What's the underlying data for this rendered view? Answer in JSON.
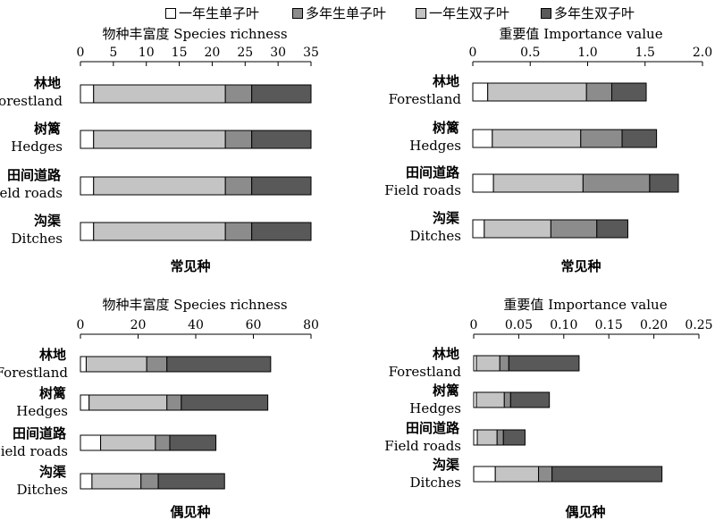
{
  "legend": [
    {
      "label": "一年生单子叶",
      "color": "#ffffff"
    },
    {
      "label": "多年生单子叶",
      "color": "#8c8c8c"
    },
    {
      "label": "一年生双子叶",
      "color": "#c4c4c4"
    },
    {
      "label": "多年生双子叶",
      "color": "#595959"
    }
  ],
  "chart_data": [
    {
      "type": "bar",
      "orientation": "horizontal-stacked",
      "title": "物种丰富度 Species richness",
      "caption": "常见种",
      "xlim": [
        0,
        35
      ],
      "ticks": [
        0,
        5,
        10,
        15,
        20,
        25,
        30,
        35
      ],
      "tick_labels": [
        "0",
        "5",
        "10",
        "15",
        "20",
        "25",
        "30",
        "35"
      ],
      "categories": [
        {
          "zh": "林地",
          "en": "Forestland"
        },
        {
          "zh": "树篱",
          "en": "Hedges"
        },
        {
          "zh": "田间道路",
          "en": "Field roads"
        },
        {
          "zh": "沟渠",
          "en": "Ditches"
        }
      ],
      "series": [
        {
          "name": "一年生单子叶",
          "values": [
            2,
            2,
            2,
            2
          ]
        },
        {
          "name": "一年生双子叶",
          "values": [
            20,
            20,
            20,
            20
          ]
        },
        {
          "name": "多年生单子叶",
          "values": [
            4,
            4,
            4,
            4
          ]
        },
        {
          "name": "多年生双子叶",
          "values": [
            9,
            9,
            9,
            9
          ]
        }
      ]
    },
    {
      "type": "bar",
      "orientation": "horizontal-stacked",
      "title": "重要值 Importance value",
      "caption": "常见种",
      "xlim": [
        0,
        2.0
      ],
      "ticks": [
        0,
        0.5,
        1.0,
        1.5,
        2.0
      ],
      "tick_labels": [
        "0",
        "0.5",
        "1.0",
        "1.5",
        "2.0"
      ],
      "categories": [
        {
          "zh": "林地",
          "en": "Forestland"
        },
        {
          "zh": "树篱",
          "en": "Hedges"
        },
        {
          "zh": "田间道路",
          "en": "Field roads"
        },
        {
          "zh": "沟渠",
          "en": "Ditches"
        }
      ],
      "series": [
        {
          "name": "一年生单子叶",
          "values": [
            0.13,
            0.17,
            0.18,
            0.1
          ]
        },
        {
          "name": "一年生双子叶",
          "values": [
            0.86,
            0.77,
            0.78,
            0.58
          ]
        },
        {
          "name": "多年生单子叶",
          "values": [
            0.22,
            0.36,
            0.58,
            0.4
          ]
        },
        {
          "name": "多年生双子叶",
          "values": [
            0.3,
            0.3,
            0.25,
            0.27
          ]
        }
      ]
    },
    {
      "type": "bar",
      "orientation": "horizontal-stacked",
      "title": "物种丰富度 Species richness",
      "caption": "偶见种",
      "xlim": [
        0,
        80
      ],
      "ticks": [
        0,
        20,
        40,
        60,
        80
      ],
      "tick_labels": [
        "0",
        "20",
        "40",
        "60",
        "80"
      ],
      "categories": [
        {
          "zh": "林地",
          "en": "Forestland"
        },
        {
          "zh": "树篱",
          "en": "Hedges"
        },
        {
          "zh": "田间道路",
          "en": "Field roads"
        },
        {
          "zh": "沟渠",
          "en": "Ditches"
        }
      ],
      "series": [
        {
          "name": "一年生单子叶",
          "values": [
            2,
            3,
            7,
            4
          ]
        },
        {
          "name": "一年生双子叶",
          "values": [
            21,
            27,
            19,
            17
          ]
        },
        {
          "name": "多年生单子叶",
          "values": [
            7,
            5,
            5,
            6
          ]
        },
        {
          "name": "多年生双子叶",
          "values": [
            36,
            30,
            16,
            23
          ]
        }
      ]
    },
    {
      "type": "bar",
      "orientation": "horizontal-stacked",
      "title": "重要值 Importance value",
      "caption": "偶见种",
      "xlim": [
        0,
        0.25
      ],
      "ticks": [
        0,
        0.05,
        0.1,
        0.15,
        0.2,
        0.25
      ],
      "tick_labels": [
        "0",
        "0.05",
        "0.10",
        "0.15",
        "0.20",
        "0.25"
      ],
      "categories": [
        {
          "zh": "林地",
          "en": "Forestland"
        },
        {
          "zh": "树篱",
          "en": "Hedges"
        },
        {
          "zh": "田间道路",
          "en": "Field roads"
        },
        {
          "zh": "沟渠",
          "en": "Ditches"
        }
      ],
      "series": [
        {
          "name": "一年生单子叶",
          "values": [
            0.003,
            0.003,
            0.004,
            0.024
          ]
        },
        {
          "name": "一年生双子叶",
          "values": [
            0.026,
            0.031,
            0.022,
            0.048
          ]
        },
        {
          "name": "多年生单子叶",
          "values": [
            0.01,
            0.007,
            0.007,
            0.015
          ]
        },
        {
          "name": "多年生双子叶",
          "values": [
            0.078,
            0.043,
            0.024,
            0.122
          ]
        }
      ]
    }
  ]
}
